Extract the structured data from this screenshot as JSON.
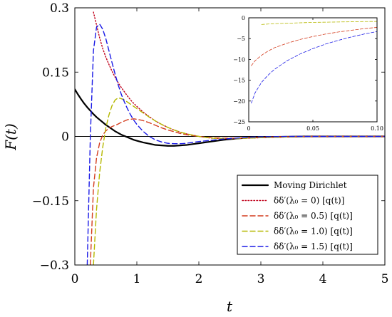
{
  "chart_data": [
    {
      "type": "line",
      "title": "",
      "xlabel": "t",
      "ylabel": "F(t)",
      "xlim": [
        0,
        5
      ],
      "ylim": [
        -0.3,
        0.3
      ],
      "xticks": [
        0,
        1,
        2,
        3,
        4,
        5
      ],
      "yticks": [
        -0.3,
        -0.15,
        0,
        0.15,
        0.3
      ],
      "xtick_labels": [
        "0",
        "1",
        "2",
        "3",
        "4",
        "5"
      ],
      "ytick_labels": [
        "−0.3",
        "−0.15",
        "0",
        "0.15",
        "0.3"
      ],
      "grid": false,
      "legend_position": "bottom-right",
      "x": [
        0,
        0.05,
        0.1,
        0.15,
        0.2,
        0.25,
        0.3,
        0.35,
        0.4,
        0.45,
        0.5,
        0.55,
        0.6,
        0.65,
        0.7,
        0.75,
        0.8,
        0.85,
        0.9,
        0.95,
        1.0,
        1.1,
        1.2,
        1.3,
        1.4,
        1.5,
        1.6,
        1.7,
        1.8,
        1.9,
        2.0,
        2.2,
        2.4,
        2.6,
        2.8,
        3.0,
        3.25,
        3.5,
        3.75,
        4.0,
        4.25,
        4.5,
        4.75,
        5.0
      ],
      "series": [
        {
          "name": "Moving Dirichlet",
          "color": "#000000",
          "dash": "solid",
          "values": [
            0.11,
            0.098,
            0.087,
            0.077,
            0.068,
            0.06,
            0.052,
            0.045,
            0.039,
            0.033,
            0.027,
            0.022,
            0.017,
            0.012,
            0.008,
            0.004,
            0.001,
            -0.002,
            -0.005,
            -0.008,
            -0.01,
            -0.014,
            -0.017,
            -0.02,
            -0.021,
            -0.022,
            -0.022,
            -0.021,
            -0.02,
            -0.018,
            -0.016,
            -0.012,
            -0.008,
            -0.005,
            -0.003,
            -0.002,
            -0.001,
            -0.0005,
            0,
            0,
            0,
            0,
            0,
            0
          ]
        },
        {
          "name": "δδ′(λ₀ = 0) [q(t)]",
          "color": "#c0001a",
          "dash": "dotted",
          "values": [
            null,
            null,
            null,
            null,
            null,
            null,
            0.29,
            0.26,
            0.23,
            0.205,
            0.185,
            0.168,
            0.152,
            0.138,
            0.125,
            0.114,
            0.104,
            0.094,
            0.085,
            0.077,
            0.07,
            0.057,
            0.046,
            0.036,
            0.028,
            0.021,
            0.015,
            0.01,
            0.006,
            0.003,
            0.0,
            -0.004,
            -0.005,
            -0.005,
            -0.004,
            -0.003,
            -0.002,
            -0.001,
            0,
            0,
            0,
            0,
            0,
            0
          ]
        },
        {
          "name": "δδ′(λ₀ = 0.5) [q(t)]",
          "color": "#d43c1e",
          "dash": "dashed",
          "values": [
            null,
            null,
            null,
            null,
            null,
            -0.3,
            -0.12,
            -0.05,
            -0.015,
            0.003,
            0.013,
            0.019,
            0.023,
            0.026,
            0.029,
            0.033,
            0.036,
            0.039,
            0.04,
            0.041,
            0.04,
            0.037,
            0.032,
            0.026,
            0.02,
            0.015,
            0.011,
            0.007,
            0.004,
            0.002,
            0.0,
            -0.003,
            -0.004,
            -0.004,
            -0.003,
            -0.002,
            -0.001,
            -0.0005,
            0,
            0,
            0,
            0,
            0,
            0
          ]
        },
        {
          "name": "δδ′(λ₀ = 1.0) [q(t)]",
          "color": "#b5b800",
          "dash": "dashed",
          "values": [
            null,
            null,
            null,
            null,
            null,
            null,
            -0.3,
            -0.17,
            -0.085,
            -0.025,
            0.02,
            0.05,
            0.072,
            0.085,
            0.09,
            0.088,
            0.085,
            0.08,
            0.075,
            0.07,
            0.065,
            0.055,
            0.045,
            0.036,
            0.028,
            0.021,
            0.015,
            0.01,
            0.006,
            0.003,
            0.0,
            -0.004,
            -0.005,
            -0.005,
            -0.004,
            -0.003,
            -0.002,
            -0.001,
            0,
            0,
            0,
            0,
            0,
            0
          ]
        },
        {
          "name": "δδ′(λ₀ = 1.5) [q(t)]",
          "color": "#1a1ae6",
          "dash": "dashed",
          "values": [
            null,
            null,
            null,
            null,
            -0.3,
            0.0,
            0.2,
            0.255,
            0.262,
            0.25,
            0.228,
            0.2,
            0.172,
            0.145,
            0.12,
            0.098,
            0.08,
            0.064,
            0.05,
            0.038,
            0.028,
            0.012,
            0.0,
            -0.008,
            -0.013,
            -0.016,
            -0.017,
            -0.017,
            -0.016,
            -0.014,
            -0.012,
            -0.009,
            -0.006,
            -0.004,
            -0.002,
            -0.001,
            -0.0005,
            0,
            0,
            0,
            0,
            0,
            0,
            0
          ]
        }
      ]
    },
    {
      "type": "line",
      "title": "",
      "xlabel": "",
      "ylabel": "",
      "xlim": [
        0,
        0.1
      ],
      "ylim": [
        -25,
        0
      ],
      "xticks": [
        0,
        0.05,
        0.1
      ],
      "yticks": [
        -25,
        -20,
        -15,
        -10,
        -5,
        0
      ],
      "xtick_labels": [
        "0",
        "0.05",
        "0.10"
      ],
      "ytick_labels": [
        "−25",
        "−20",
        "−15",
        "−10",
        "−5",
        "0"
      ],
      "grid": false,
      "x": [
        0,
        0.002,
        0.005,
        0.01,
        0.015,
        0.02,
        0.03,
        0.04,
        0.05,
        0.06,
        0.07,
        0.08,
        0.09,
        0.1
      ],
      "series": [
        {
          "color": "#b5b800",
          "dash": "dashed",
          "values": [
            null,
            null,
            null,
            -1.6,
            -1.5,
            -1.4,
            -1.3,
            -1.2,
            -1.1,
            -1.05,
            -1.0,
            -0.95,
            -0.9,
            -0.88
          ]
        },
        {
          "color": "#d43c1e",
          "dash": "dashed",
          "values": [
            null,
            -11.5,
            -10.3,
            -9.0,
            -8.0,
            -7.2,
            -6.1,
            -5.2,
            -4.5,
            -3.9,
            -3.4,
            -3.0,
            -2.6,
            -2.3
          ]
        },
        {
          "color": "#1a1ae6",
          "dash": "dashed",
          "values": [
            null,
            -20.5,
            -18.0,
            -15.5,
            -13.8,
            -12.4,
            -10.3,
            -8.7,
            -7.4,
            -6.3,
            -5.4,
            -4.6,
            -3.9,
            -3.3
          ]
        }
      ]
    }
  ],
  "legend": {
    "entries": [
      {
        "label": "Moving Dirichlet",
        "color": "#000000",
        "dash": "solid"
      },
      {
        "label": "δδ′(λ₀ = 0) [q(t)]",
        "color": "#c0001a",
        "dash": "dotted"
      },
      {
        "label": "δδ′(λ₀ = 0.5) [q(t)]",
        "color": "#d43c1e",
        "dash": "dashed"
      },
      {
        "label": "δδ′(λ₀ = 1.0) [q(t)]",
        "color": "#b5b800",
        "dash": "dashed"
      },
      {
        "label": "δδ′(λ₀ = 1.5) [q(t)]",
        "color": "#1a1ae6",
        "dash": "dashed"
      }
    ]
  }
}
